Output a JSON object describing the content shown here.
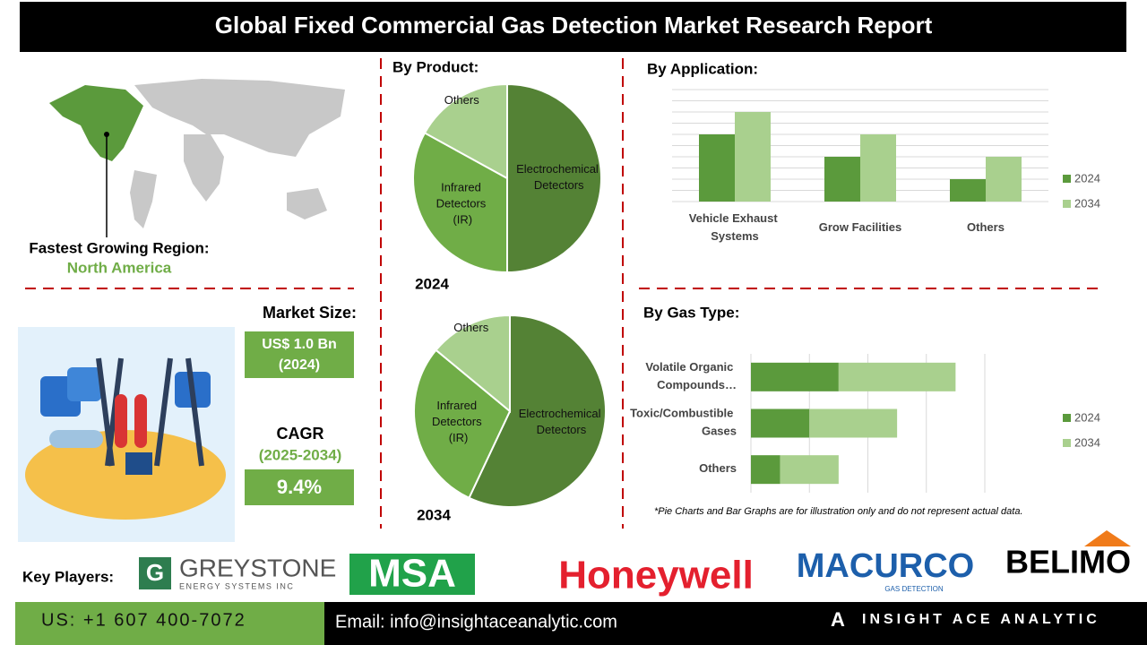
{
  "header": {
    "title": "Global Fixed Commercial Gas Detection Market Research Report"
  },
  "region": {
    "label": "Fastest Growing Region:",
    "value": "North America"
  },
  "market_size": {
    "label": "Market Size:",
    "value": "US$ 1.0 Bn",
    "year": "(2024)"
  },
  "cagr": {
    "label": "CAGR",
    "period": "(2025-2034)",
    "value": "9.4%"
  },
  "key_players": {
    "label": "Key Players:",
    "names": [
      "GREYSTONE",
      "MSA",
      "Honeywell",
      "MACURCO",
      "BELIMO"
    ],
    "greystone_tagline": "ENERGY SYSTEMS INC",
    "macurco_tagline": "GAS DETECTION"
  },
  "note": "*Pie Charts and Bar Graphs are for illustration only and do not represent actual data.",
  "footer": {
    "phone": "US: +1 607 400-7072",
    "email": "Email: info@insightaceanalytic.com",
    "brand": "INSIGHT ACE ANALYTIC"
  },
  "chart_data": [
    {
      "type": "pie",
      "title": "By Product:",
      "subtitle": "2024",
      "categories": [
        "Electrochemical Detectors",
        "Infrared Detectors (IR)",
        "Others"
      ],
      "values": [
        50,
        33,
        17
      ],
      "colors": [
        "#548235",
        "#70ad47",
        "#a9d08e"
      ]
    },
    {
      "type": "pie",
      "subtitle": "2034",
      "categories": [
        "Electrochemical Detectors",
        "Infrared Detectors (IR)",
        "Others"
      ],
      "values": [
        57,
        29,
        14
      ],
      "colors": [
        "#548235",
        "#70ad47",
        "#a9d08e"
      ]
    },
    {
      "type": "bar",
      "title": "By Application:",
      "orientation": "vertical",
      "stacked": false,
      "categories": [
        "Vehicle Exhaust Systems",
        "Grow Facilities",
        "Others"
      ],
      "series": [
        {
          "name": "2024",
          "color": "#5b9a3c",
          "values": [
            3,
            2,
            1
          ]
        },
        {
          "name": "2034",
          "color": "#a9d08e",
          "values": [
            4,
            3,
            2
          ]
        }
      ],
      "ylim": [
        0,
        5
      ],
      "yticks": [
        0,
        0.5,
        1,
        1.5,
        2,
        2.5,
        3,
        3.5,
        4,
        4.5,
        5
      ],
      "grid": true,
      "legend": "right"
    },
    {
      "type": "bar",
      "title": "By Gas Type:",
      "orientation": "horizontal",
      "stacked": true,
      "categories": [
        "Volatile Organic Compounds…",
        "Toxic/Combustible Gases",
        "Others"
      ],
      "series": [
        {
          "name": "2024",
          "color": "#5b9a3c",
          "values": [
            1.5,
            1,
            0.5
          ]
        },
        {
          "name": "2034",
          "color": "#a9d08e",
          "values": [
            2,
            1.5,
            1
          ]
        }
      ],
      "xlim": [
        0,
        4
      ],
      "xticks": [
        0,
        1,
        2,
        3,
        4
      ],
      "grid": true,
      "legend": "right"
    }
  ]
}
